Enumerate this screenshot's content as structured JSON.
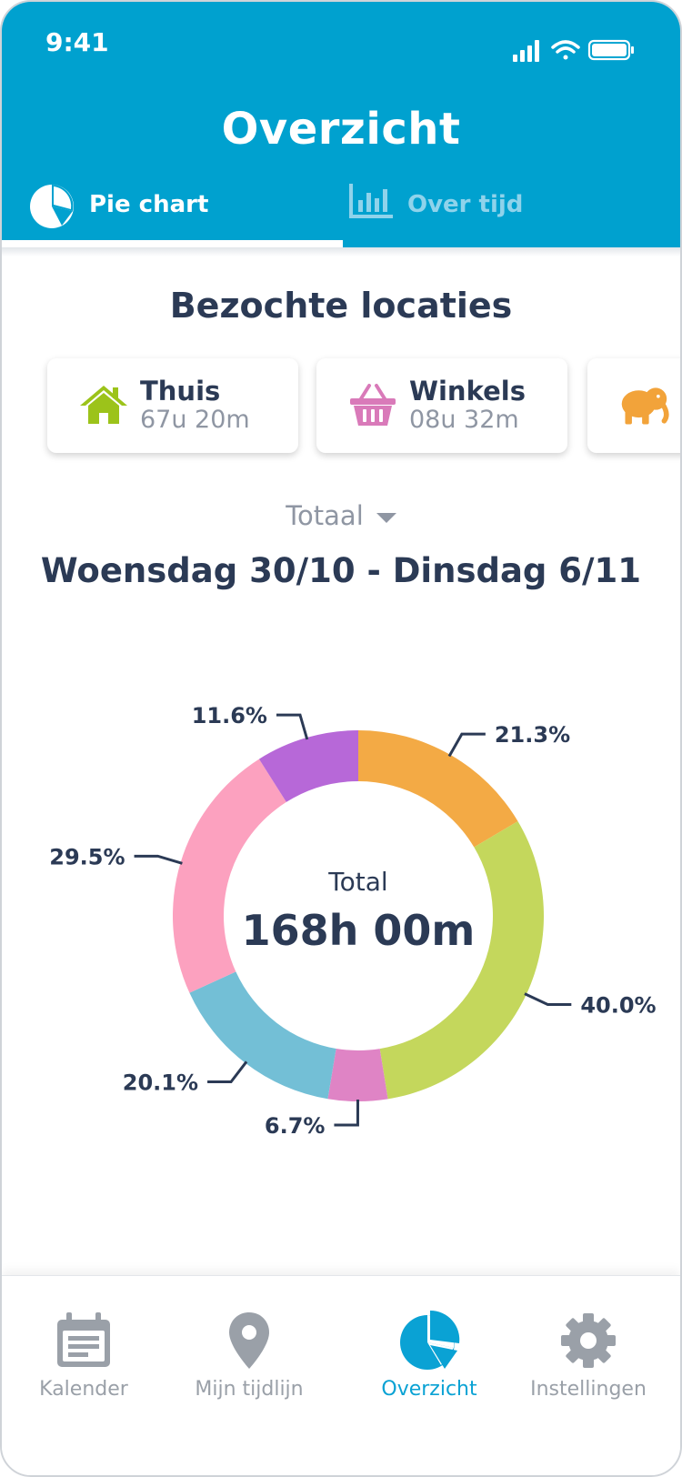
{
  "status": {
    "time": "9:41"
  },
  "header": {
    "title": "Overzicht"
  },
  "tabs": [
    {
      "label": "Pie chart",
      "icon": "pie-chart-icon",
      "active": true
    },
    {
      "label": "Over tijd",
      "icon": "bar-chart-icon",
      "active": false
    }
  ],
  "section": {
    "title": "Bezochte locaties"
  },
  "locations": [
    {
      "name": "Thuis",
      "duration": "67u 20m",
      "icon": "house-icon",
      "color": "#9cc31a"
    },
    {
      "name": "Winkels",
      "duration": "08u 32m",
      "icon": "basket-icon",
      "color": "#d97ab9"
    },
    {
      "name": "",
      "duration": "",
      "icon": "elephant-icon",
      "color": "#f2a33a"
    }
  ],
  "filter": {
    "selected": "Totaal"
  },
  "date_range": "Woensdag 30/10 - Dinsdag 6/11",
  "chart_data": {
    "type": "pie",
    "center_label": "Total",
    "center_value": "168h 00m",
    "slices": [
      {
        "label": "21.3%",
        "value": 21.3,
        "color": "#f3aa45"
      },
      {
        "label": "40.0%",
        "value": 40.0,
        "color": "#c4d75c"
      },
      {
        "label": "6.7%",
        "value": 6.7,
        "color": "#df84c5"
      },
      {
        "label": "20.1%",
        "value": 20.1,
        "color": "#73bfd6"
      },
      {
        "label": "29.5%",
        "value": 29.5,
        "color": "#fca1bf"
      },
      {
        "label": "11.6%",
        "value": 11.6,
        "color": "#b768d8"
      }
    ]
  },
  "nav": [
    {
      "label": "Kalender",
      "icon": "calendar-icon",
      "active": false
    },
    {
      "label": "Mijn tijdlijn",
      "icon": "map-pin-icon",
      "active": false
    },
    {
      "label": "Overzicht",
      "icon": "pie-chart-icon",
      "active": true
    },
    {
      "label": "Instellingen",
      "icon": "gear-icon",
      "active": false
    }
  ],
  "colors": {
    "header": "#00a1cf",
    "active_nav": "#0aa2d4",
    "text_dark": "#2b3a55",
    "text_muted": "#8f96a3"
  }
}
